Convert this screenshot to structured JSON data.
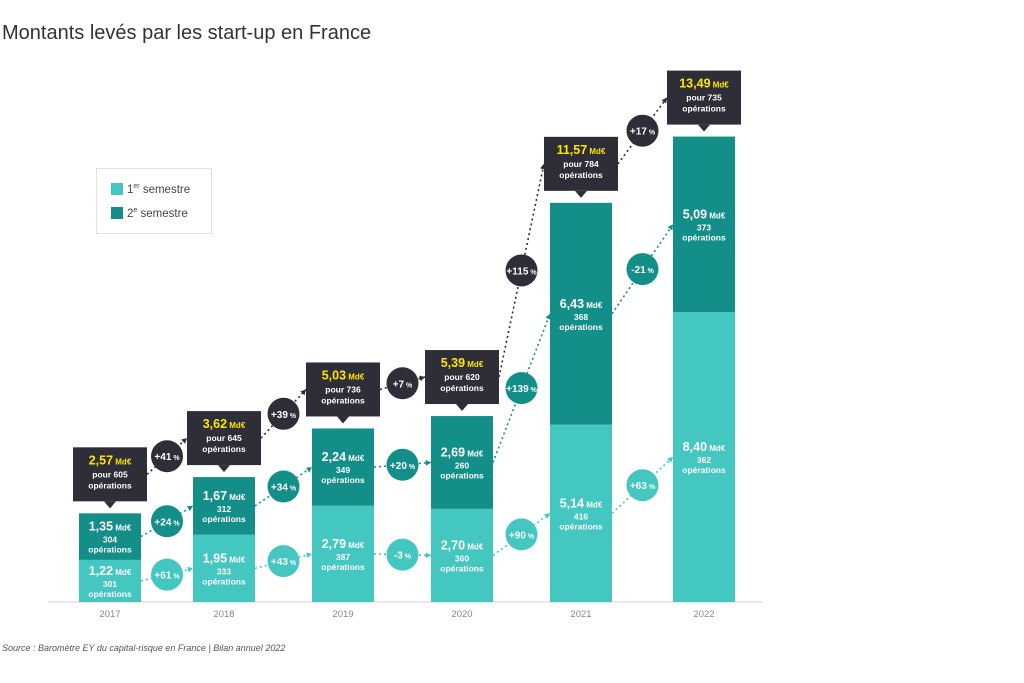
{
  "title": "Montants levés par les start-up en France",
  "legend": {
    "s1_prefix": "1",
    "s1_sup": "er",
    "s1_suffix": " semestre",
    "s2_prefix": "2",
    "s2_sup": "e",
    "s2_suffix": " semestre"
  },
  "source": "Source : Baromètre EY du capital-risque en France | Bilan annuel 2022",
  "colors": {
    "s1": "#44c7c0",
    "s2": "#138e89",
    "total_box": "#2e2e38",
    "total_value": "#ffe600",
    "text_light": "#ffffff"
  },
  "chart_data": {
    "type": "bar",
    "stacked": true,
    "categories": [
      "2017",
      "2018",
      "2019",
      "2020",
      "2021",
      "2022"
    ],
    "unit": "Md€",
    "ops_word": "opérations",
    "total_prefix": "pour",
    "series": [
      {
        "name": "1er semestre",
        "values": [
          1.22,
          1.95,
          2.79,
          2.7,
          5.14,
          8.4
        ],
        "value_labels": [
          "1,22",
          "1,95",
          "2,79",
          "2,70",
          "5,14",
          "8,40"
        ],
        "operations": [
          "301",
          "333",
          "387",
          "360",
          "416",
          "362"
        ],
        "growth": [
          "+61",
          "+43",
          "-3",
          "+90",
          "+63"
        ]
      },
      {
        "name": "2e semestre",
        "values": [
          1.35,
          1.67,
          2.24,
          2.69,
          6.43,
          5.09
        ],
        "value_labels": [
          "1,35",
          "1,67",
          "2,24",
          "2,69",
          "6,43",
          "5,09"
        ],
        "operations": [
          "304",
          "312",
          "349",
          "260",
          "368",
          "373"
        ],
        "growth": [
          "+24",
          "+34",
          "+20",
          "+139",
          "-21"
        ]
      }
    ],
    "totals": {
      "values": [
        2.57,
        3.62,
        5.03,
        5.39,
        11.57,
        13.49
      ],
      "value_labels": [
        "2,57",
        "3,62",
        "5,03",
        "5,39",
        "11,57",
        "13,49"
      ],
      "operations": [
        "605",
        "645",
        "736",
        "620",
        "784",
        "735"
      ],
      "growth": [
        "+41",
        "+39",
        "+7",
        "+115",
        "+17"
      ]
    },
    "growth_unit": "%",
    "ylim": [
      0,
      14
    ],
    "grid": false,
    "legend_position": "top-left"
  }
}
